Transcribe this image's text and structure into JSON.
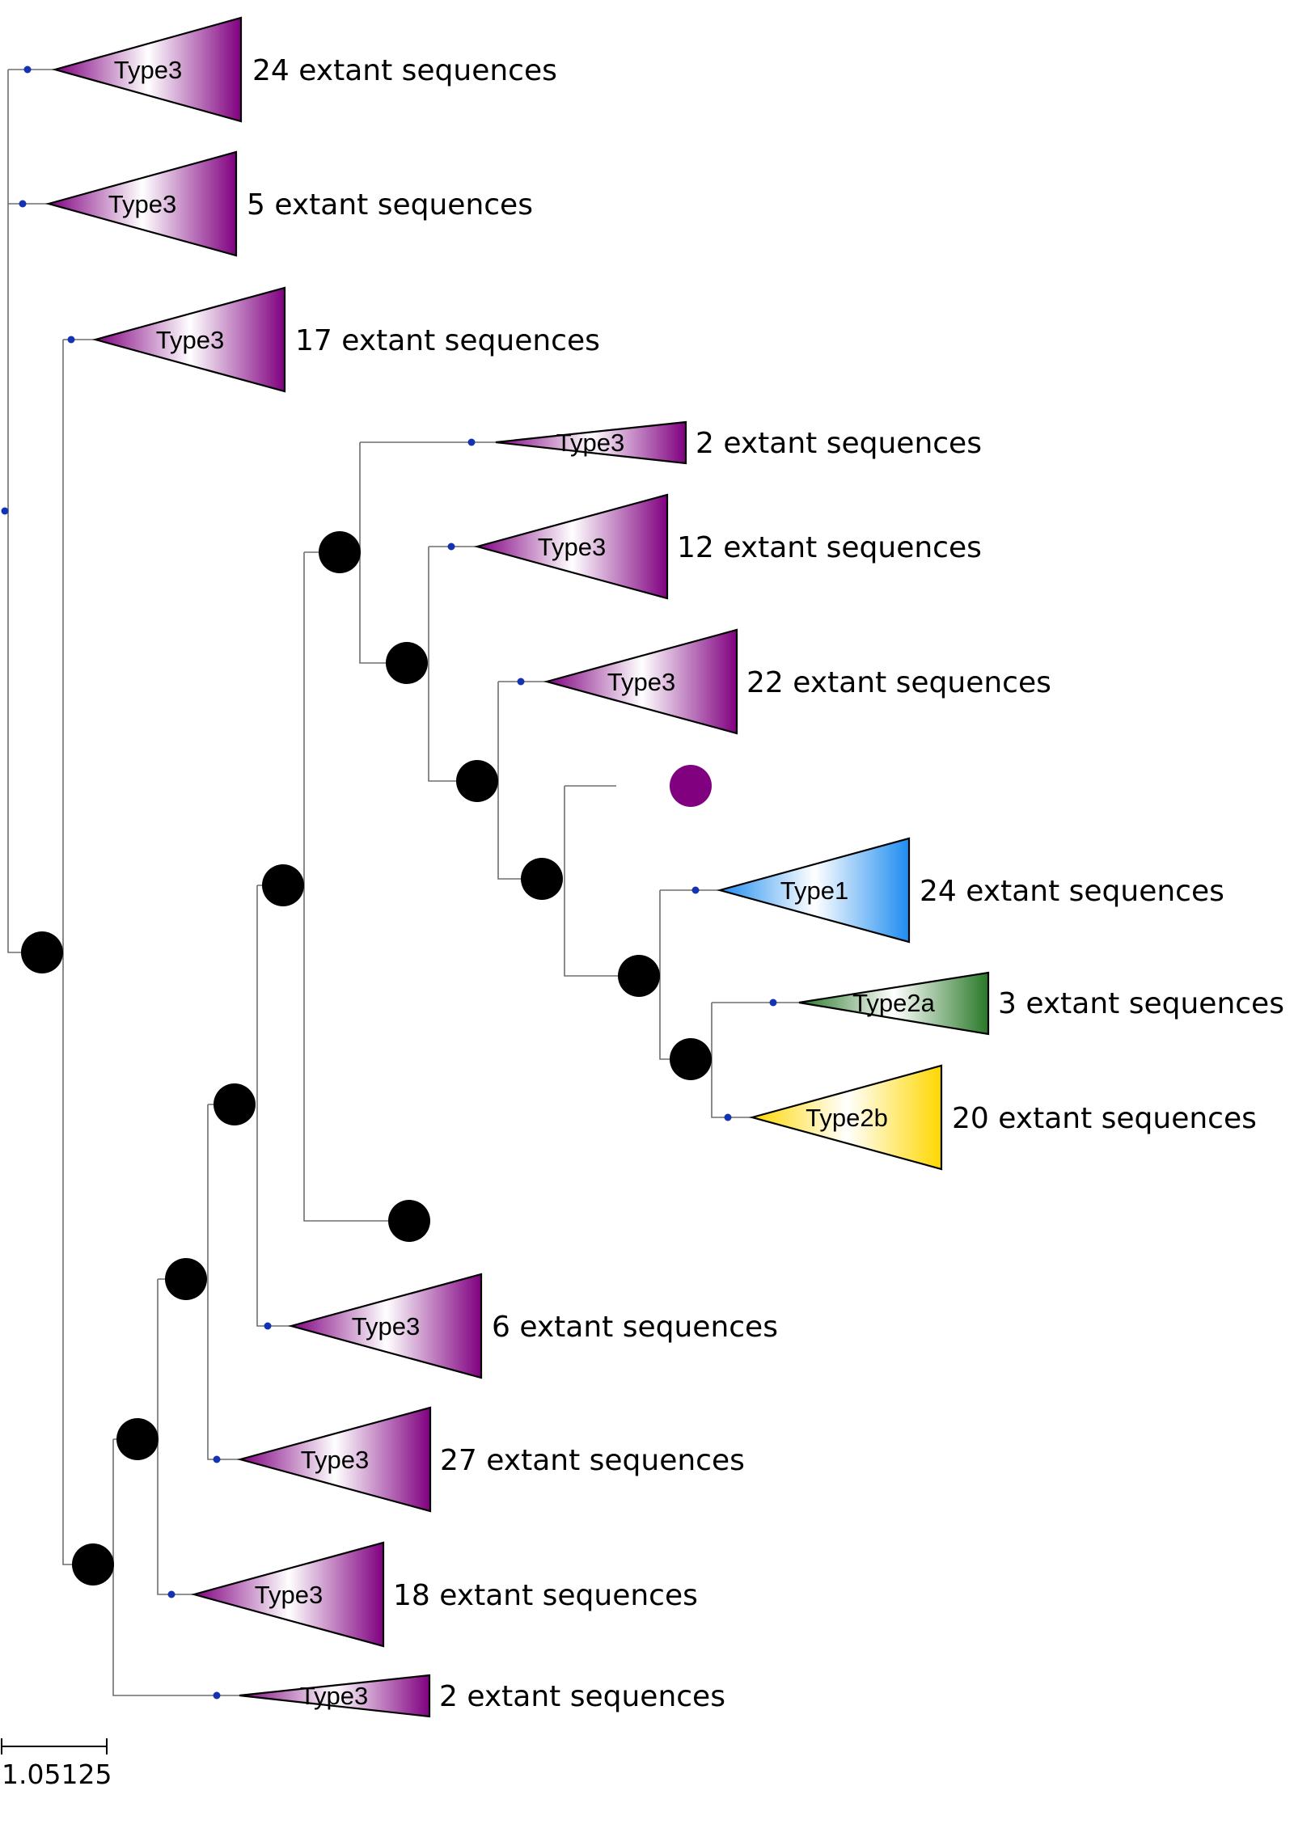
{
  "clades": [
    {
      "name": "Type3",
      "count_label": "24 extant sequences",
      "color": "#800080"
    },
    {
      "name": "Type3",
      "count_label": "5 extant sequences",
      "color": "#800080"
    },
    {
      "name": "Type3",
      "count_label": "17 extant sequences",
      "color": "#800080"
    },
    {
      "name": "Type3",
      "count_label": "2 extant sequences",
      "color": "#800080"
    },
    {
      "name": "Type3",
      "count_label": "12 extant sequences",
      "color": "#800080"
    },
    {
      "name": "Type3",
      "count_label": "22 extant sequences",
      "color": "#800080"
    },
    {
      "name": "Type1",
      "count_label": "24 extant sequences",
      "color": "#1e8cf0"
    },
    {
      "name": "Type2a",
      "count_label": "3 extant sequences",
      "color": "#287828"
    },
    {
      "name": "Type2b",
      "count_label": "20 extant sequences",
      "color": "#ffd700"
    },
    {
      "name": "Type3",
      "count_label": "6 extant sequences",
      "color": "#800080"
    },
    {
      "name": "Type3",
      "count_label": "27 extant sequences",
      "color": "#800080"
    },
    {
      "name": "Type3",
      "count_label": "18 extant sequences",
      "color": "#800080"
    },
    {
      "name": "Type3",
      "count_label": "2 extant sequences",
      "color": "#800080"
    }
  ],
  "highlighted_node_color": "#800080",
  "internal_node_color": "#000000",
  "leaf_dot_color": "#1432b4",
  "scale_bar": {
    "label": "1.05125"
  }
}
